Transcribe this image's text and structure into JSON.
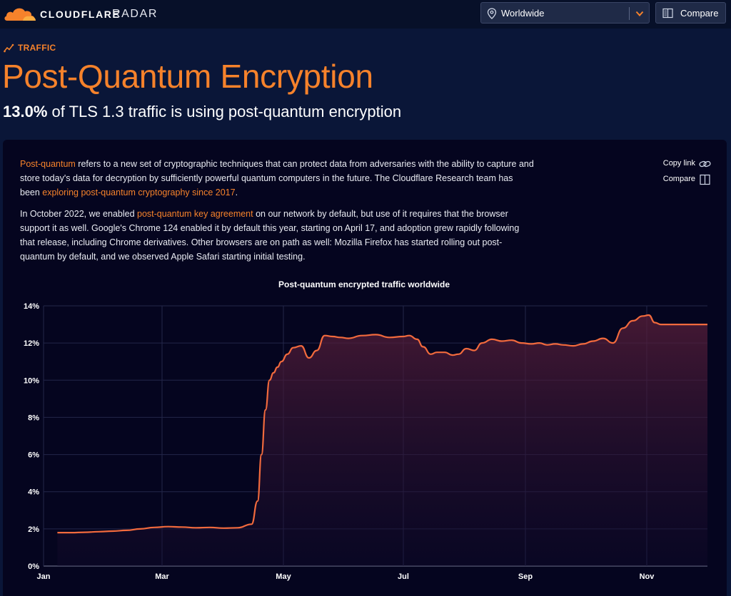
{
  "header": {
    "brand": "CLOUDFLARE",
    "brand_sub": "RADAR",
    "location": {
      "value": "Worldwide"
    },
    "compare_label": "Compare"
  },
  "breadcrumb": {
    "label": "TRAFFIC"
  },
  "page": {
    "title": "Post-Quantum Encryption",
    "stat_value": "13.0%",
    "stat_text": " of TLS 1.3 traffic is using post-quantum encryption"
  },
  "content": {
    "paragraph1": {
      "link1": "Post-quantum",
      "text1": " refers to a new set of cryptographic techniques that can protect data from adversaries with the ability to capture and store today's data for decryption by sufficiently powerful quantum computers in the future. The Cloudflare Research team has been ",
      "link2": "exploring post-quantum cryptography since 2017",
      "text2": "."
    },
    "paragraph2": {
      "text1": "In October 2022, we enabled ",
      "link1": "post-quantum key agreement",
      "text2": " on our network by default, but use of it requires that the browser support it as well. Google's Chrome 124 enabled it by default this year, starting on April 17, and adoption grew rapidly following that release, including Chrome derivatives. Other browsers are on path as well: Mozilla Firefox has started rolling out post-quantum by default, and we observed Apple Safari starting initial testing."
    },
    "actions": {
      "copy_link": "Copy link",
      "compare": "Compare"
    }
  },
  "colors": {
    "accent": "#f6822b",
    "background": "#0a1638",
    "card": "#05051f",
    "line": "#f26a3d"
  },
  "icons": {
    "logo": "cloud-logo-icon",
    "location": "map-pin-icon",
    "dropdown": "chevron-down-icon",
    "compare": "split-panel-icon",
    "traffic": "trending-up-icon",
    "copy": "link-chain-icon"
  },
  "chart_data": {
    "type": "area",
    "title": "Post-quantum encrypted traffic worldwide",
    "xlabel": "",
    "ylabel": "",
    "x_ticks": [
      "Jan",
      "Mar",
      "May",
      "Jul",
      "Sep",
      "Nov"
    ],
    "y_ticks": [
      "0%",
      "2%",
      "4%",
      "6%",
      "8%",
      "10%",
      "12%",
      "14%"
    ],
    "ylim": [
      0,
      14
    ],
    "grid": true,
    "legend": "none",
    "series": [
      {
        "x": [
          "2024-01-08",
          "2024-01-15",
          "2024-01-22",
          "2024-01-29",
          "2024-02-05",
          "2024-02-12",
          "2024-02-19",
          "2024-02-26",
          "2024-03-04",
          "2024-03-11",
          "2024-03-18",
          "2024-03-25",
          "2024-04-01",
          "2024-04-08",
          "2024-04-15",
          "2024-04-18",
          "2024-04-20",
          "2024-04-22",
          "2024-04-24",
          "2024-04-26",
          "2024-04-28",
          "2024-04-30",
          "2024-05-03",
          "2024-05-06",
          "2024-05-10",
          "2024-05-14",
          "2024-05-18",
          "2024-05-22",
          "2024-05-26",
          "2024-05-30",
          "2024-06-03",
          "2024-06-10",
          "2024-06-17",
          "2024-06-24",
          "2024-07-01",
          "2024-07-04",
          "2024-07-08",
          "2024-07-11",
          "2024-07-15",
          "2024-07-18",
          "2024-07-22",
          "2024-07-26",
          "2024-07-29",
          "2024-08-02",
          "2024-08-06",
          "2024-08-10",
          "2024-08-15",
          "2024-08-20",
          "2024-08-25",
          "2024-08-30",
          "2024-09-04",
          "2024-09-08",
          "2024-09-12",
          "2024-09-16",
          "2024-09-20",
          "2024-09-25",
          "2024-09-30",
          "2024-10-05",
          "2024-10-10",
          "2024-10-15",
          "2024-10-20",
          "2024-10-25",
          "2024-10-30",
          "2024-11-02",
          "2024-11-05",
          "2024-11-08",
          "2024-11-12",
          "2024-11-16",
          "2024-11-20",
          "2024-11-24",
          "2024-11-27",
          "2024-11-29",
          "2024-12-01"
        ],
        "values": [
          1.8,
          1.8,
          1.82,
          1.85,
          1.88,
          1.92,
          2.0,
          2.08,
          2.12,
          2.1,
          2.06,
          2.08,
          2.04,
          2.06,
          2.25,
          3.5,
          6.0,
          8.4,
          10.0,
          10.4,
          10.7,
          11.0,
          11.4,
          11.75,
          11.85,
          11.2,
          11.6,
          12.4,
          12.35,
          12.3,
          12.25,
          12.4,
          12.45,
          12.3,
          12.35,
          12.4,
          12.2,
          11.8,
          11.4,
          11.5,
          11.5,
          11.35,
          11.4,
          11.7,
          11.6,
          12.0,
          12.2,
          12.1,
          12.15,
          12.0,
          11.95,
          12.0,
          11.9,
          11.95,
          11.9,
          11.85,
          11.95,
          12.1,
          12.25,
          12.0,
          12.8,
          13.2,
          13.45,
          13.5,
          13.1,
          13.0,
          13.0,
          13.0,
          13.0,
          13.0,
          13.0,
          13.0,
          13.0
        ]
      }
    ]
  }
}
